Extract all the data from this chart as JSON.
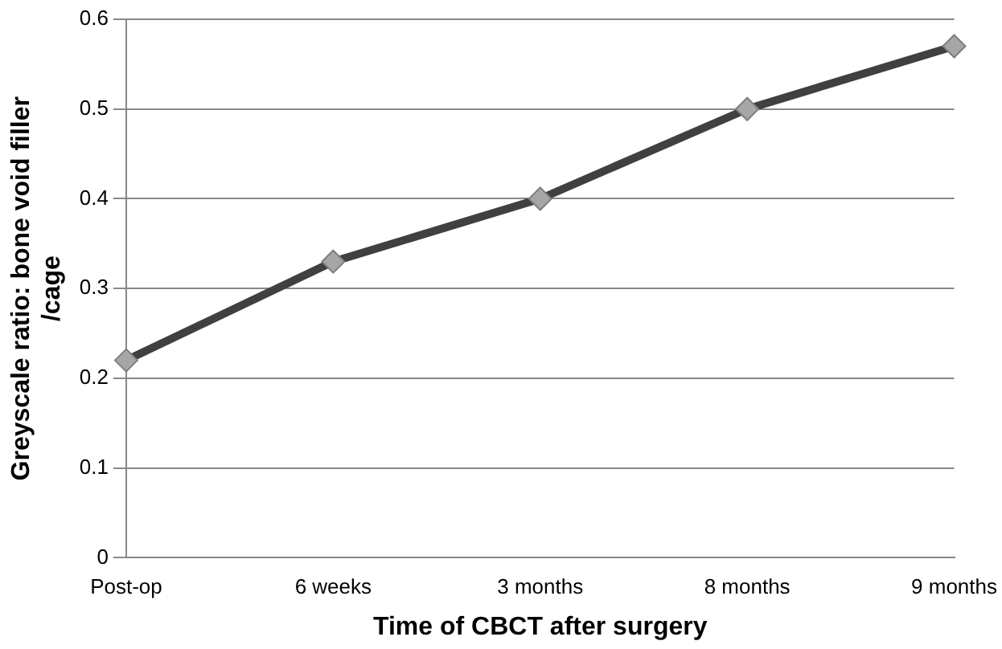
{
  "chart_data": {
    "type": "line",
    "xlabel": "Time of CBCT after surgery",
    "ylabel": "Greyscale ratio: bone void filler /cage",
    "categories": [
      "Post-op",
      "6 weeks",
      "3 months",
      "8 months",
      "9 months"
    ],
    "series": [
      {
        "color": "#404040",
        "values": [
          0.22,
          0.33,
          0.4,
          0.5,
          0.57
        ]
      }
    ],
    "ylim": [
      0,
      0.6
    ],
    "yticks": [
      0,
      0.1,
      0.2,
      0.3,
      0.4,
      0.5,
      0.6
    ],
    "grid": "y",
    "legend": false,
    "marker": "diamond",
    "line_style": "solid"
  }
}
